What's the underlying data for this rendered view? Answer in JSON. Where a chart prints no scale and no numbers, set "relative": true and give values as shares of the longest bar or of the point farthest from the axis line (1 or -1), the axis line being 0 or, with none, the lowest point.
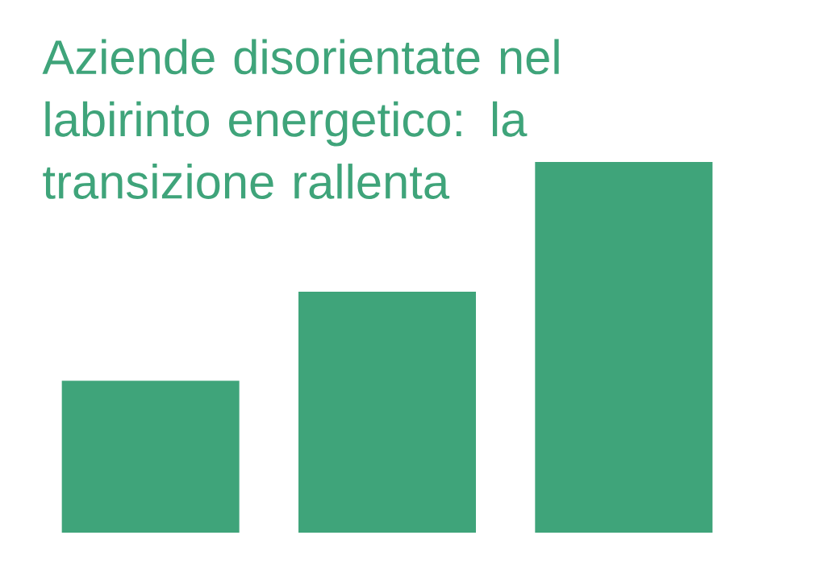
{
  "chart_data": {
    "type": "bar",
    "title": "Aziende disorientate nel labirinto energetico: la transizione rallenta",
    "categories": [
      null,
      null,
      null
    ],
    "values": [
      0.41,
      0.65,
      1
    ],
    "color": "#3fa47a",
    "relative": true
  }
}
